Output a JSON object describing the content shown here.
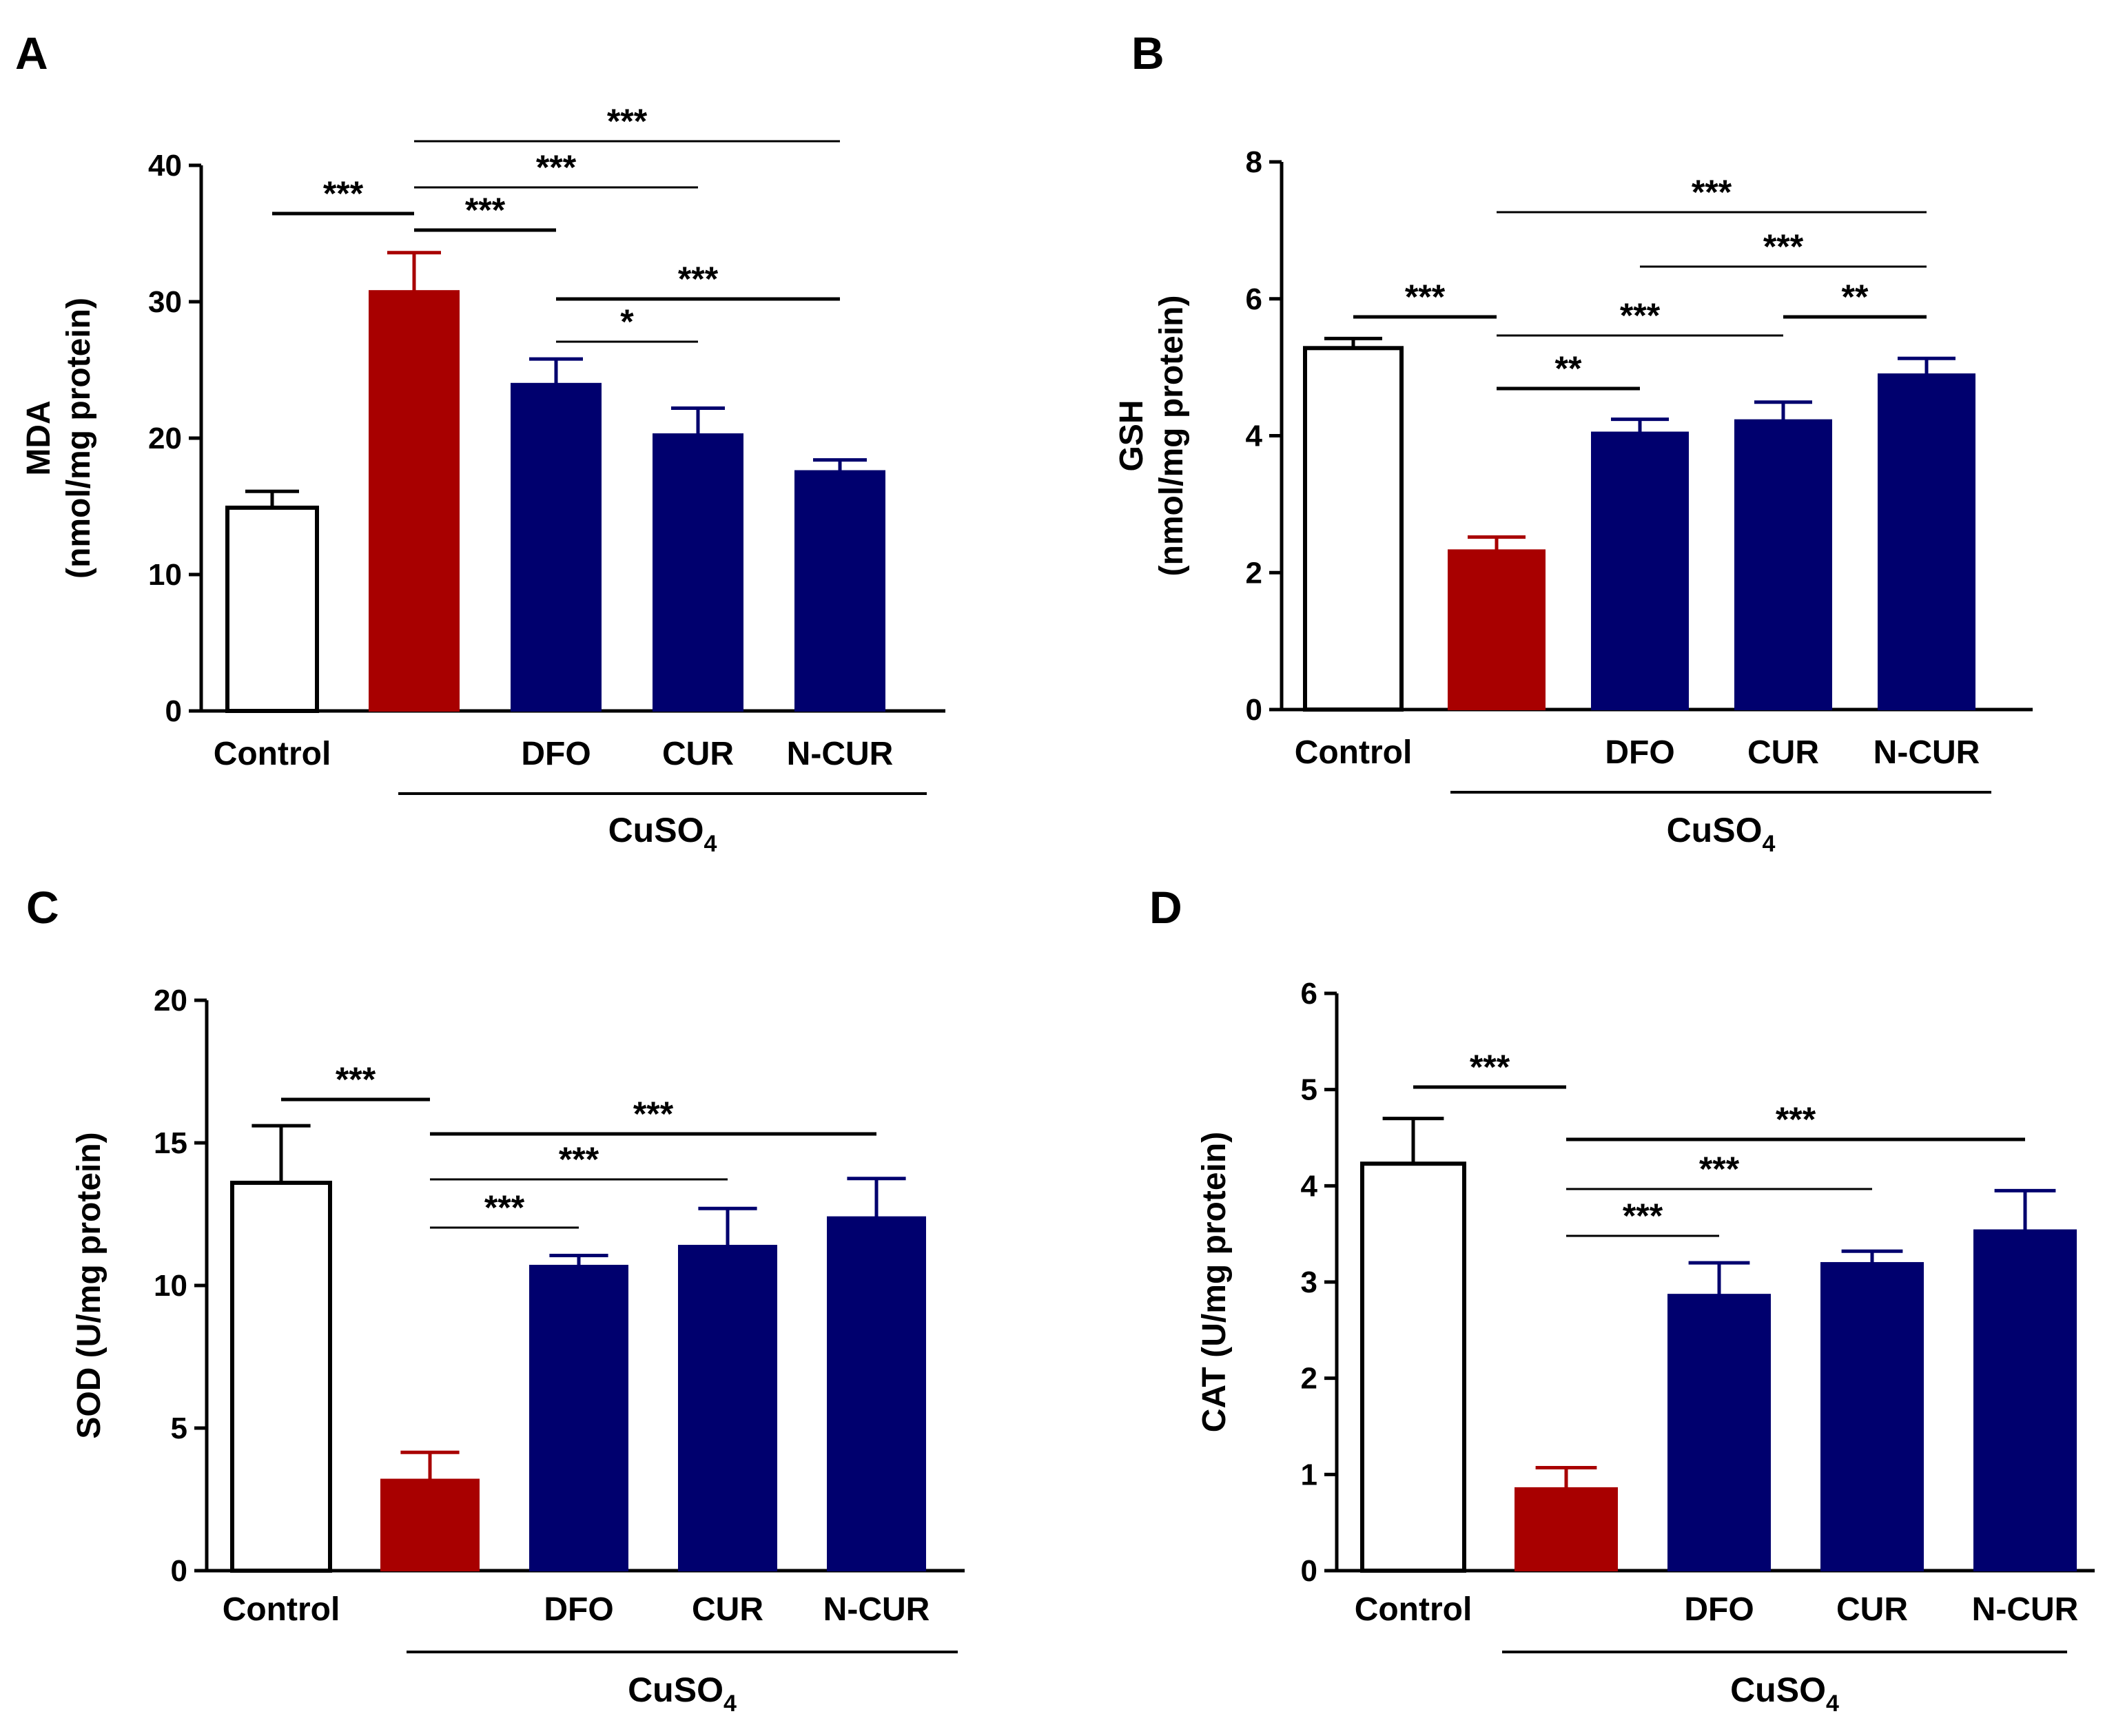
{
  "colors": {
    "control": "#ffffff",
    "cuso4": "#a80000",
    "treatment": "#00006e",
    "axis": "#000000"
  },
  "chart_data": [
    {
      "panel": "A",
      "type": "bar",
      "categories": [
        "Control",
        "",
        "DFO",
        "CUR",
        "N-CUR"
      ],
      "values": [
        14.9,
        30.8,
        24.0,
        20.3,
        17.6
      ],
      "errors": [
        1.2,
        2.8,
        1.8,
        1.9,
        0.8
      ],
      "ylabel_main": "MDA",
      "ylabel_unit": "(nmol/mg protein)",
      "ylim": [
        0,
        40
      ],
      "yticks": [
        0,
        10,
        20,
        30,
        40
      ],
      "group_label": "CuSO",
      "group_subscript": "4",
      "group_span": [
        1,
        4
      ],
      "comparisons": [
        {
          "from": 0,
          "to": 1,
          "label": "***"
        },
        {
          "from": 1,
          "to": 4,
          "label": "***"
        },
        {
          "from": 1,
          "to": 3,
          "label": "***"
        },
        {
          "from": 1,
          "to": 2,
          "label": "***"
        },
        {
          "from": 2,
          "to": 4,
          "label": "***"
        },
        {
          "from": 2,
          "to": 3,
          "label": "*"
        }
      ]
    },
    {
      "panel": "B",
      "type": "bar",
      "categories": [
        "Control",
        "",
        "DFO",
        "CUR",
        "N-CUR"
      ],
      "values": [
        5.28,
        2.33,
        4.05,
        4.23,
        4.9
      ],
      "errors": [
        0.14,
        0.19,
        0.19,
        0.26,
        0.23
      ],
      "ylabel_main": "GSH",
      "ylabel_unit": "(nmol/mg protein)",
      "ylim": [
        0,
        8
      ],
      "yticks": [
        0,
        2,
        4,
        6,
        8
      ],
      "group_label": "CuSO",
      "group_subscript": "4",
      "group_span": [
        1,
        4
      ],
      "comparisons": [
        {
          "from": 1,
          "to": 4,
          "label": "***"
        },
        {
          "from": 2,
          "to": 4,
          "label": "***"
        },
        {
          "from": 0,
          "to": 1,
          "label": "***"
        },
        {
          "from": 1,
          "to": 3,
          "label": "***"
        },
        {
          "from": 3,
          "to": 4,
          "label": "**"
        },
        {
          "from": 1,
          "to": 2,
          "label": "**"
        }
      ]
    },
    {
      "panel": "C",
      "type": "bar",
      "categories": [
        "Control",
        "",
        "DFO",
        "CUR",
        "N-CUR"
      ],
      "values": [
        13.6,
        3.2,
        10.7,
        11.4,
        12.4
      ],
      "errors": [
        2.0,
        0.95,
        0.35,
        1.3,
        1.35
      ],
      "ylabel_main": "SOD (U/mg protein)",
      "ylabel_unit": "",
      "ylim": [
        0,
        20
      ],
      "yticks": [
        0,
        5,
        10,
        15,
        20
      ],
      "group_label": "CuSO",
      "group_subscript": "4",
      "group_span": [
        1,
        4
      ],
      "comparisons": [
        {
          "from": 0,
          "to": 1,
          "label": "***"
        },
        {
          "from": 1,
          "to": 4,
          "label": "***"
        },
        {
          "from": 1,
          "to": 3,
          "label": "***"
        },
        {
          "from": 1,
          "to": 2,
          "label": "***"
        }
      ]
    },
    {
      "panel": "D",
      "type": "bar",
      "categories": [
        "Control",
        "",
        "DFO",
        "CUR",
        "N-CUR"
      ],
      "values": [
        4.23,
        0.86,
        2.87,
        3.2,
        3.54
      ],
      "errors": [
        0.47,
        0.21,
        0.33,
        0.12,
        0.41
      ],
      "ylabel_main": "CAT (U/mg protein)",
      "ylabel_unit": "",
      "ylim": [
        0,
        6
      ],
      "yticks": [
        0,
        1,
        2,
        3,
        4,
        5,
        6
      ],
      "group_label": "CuSO",
      "group_subscript": "4",
      "group_span": [
        1,
        4
      ],
      "comparisons": [
        {
          "from": 0,
          "to": 1,
          "label": "***"
        },
        {
          "from": 1,
          "to": 4,
          "label": "***"
        },
        {
          "from": 1,
          "to": 3,
          "label": "***"
        },
        {
          "from": 1,
          "to": 2,
          "label": "***"
        }
      ]
    }
  ]
}
